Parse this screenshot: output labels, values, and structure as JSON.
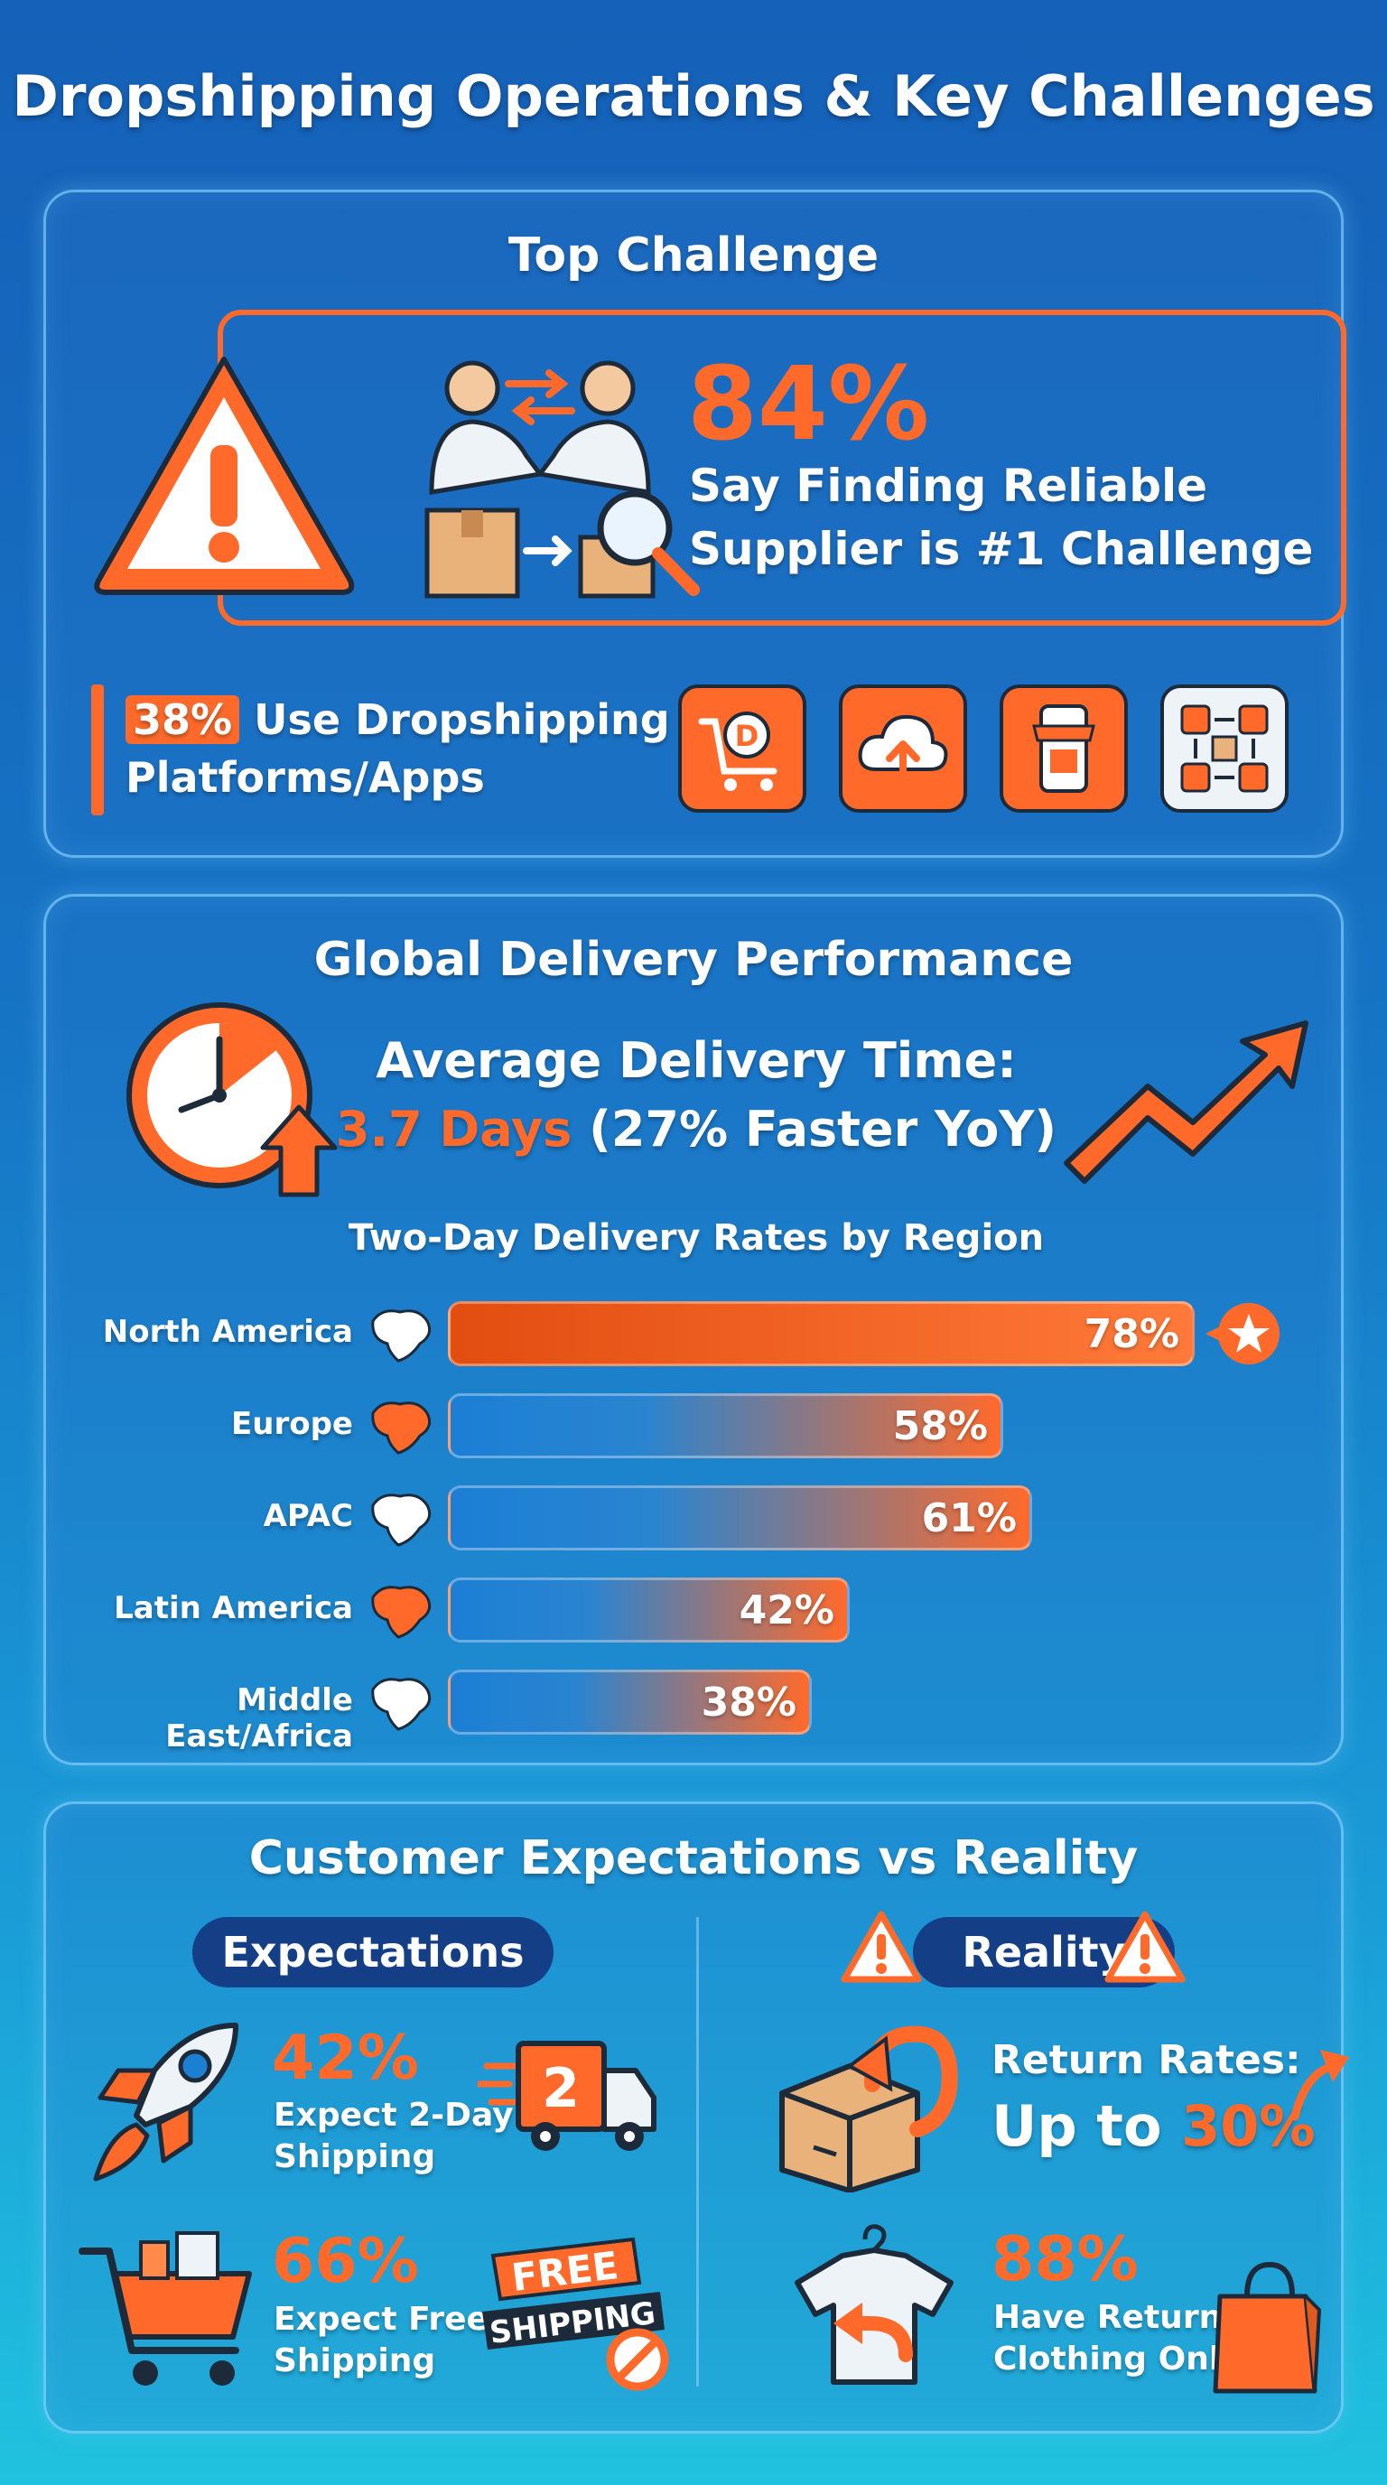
{
  "title": "Dropshipping Operations & Key Challenges",
  "colors": {
    "accent": "#ff6a2b",
    "background_top": "#1560b8",
    "background_bottom": "#20c2df"
  },
  "top_challenge": {
    "heading": "Top Challenge",
    "percent": "84%",
    "line1": "Say Finding Reliable",
    "line2": "Supplier is #1 Challenge",
    "platforms_percent": "38%",
    "platforms_line1": "Use Dropshipping",
    "platforms_line2": "Platforms/Apps",
    "icons": [
      "warning-icon",
      "handshake-supplier-icon",
      "dropshipping-cart-icon",
      "cloud-upload-icon",
      "mobile-store-icon",
      "supply-flow-icon"
    ],
    "cart_letter": "D"
  },
  "delivery": {
    "heading": "Global Delivery Performance",
    "avg_label": "Average Delivery Time:",
    "avg_value": "3.7 Days",
    "avg_note": "(27% Faster YoY)",
    "chart_title": "Two-Day Delivery Rates by Region"
  },
  "chart_data": {
    "type": "bar",
    "orientation": "horizontal",
    "title": "Two-Day Delivery Rates by Region",
    "categories": [
      "North America",
      "Europe",
      "APAC",
      "Latin America",
      "Middle East/Africa"
    ],
    "values": [
      78,
      58,
      61,
      42,
      38
    ],
    "value_labels": [
      "78%",
      "58%",
      "61%",
      "42%",
      "38%"
    ],
    "unit": "%",
    "xlim": [
      0,
      100
    ],
    "highlight": "North America"
  },
  "expectations": {
    "heading": "Customer Expectations vs Reality",
    "expect_label": "Expectations",
    "reality_label": "Reality",
    "e1_pct": "42%",
    "e1_line1": "Expect 2-Day",
    "e1_line2": "Shipping",
    "truck_number": "2",
    "e2_pct": "66%",
    "e2_line1": "Expect Free",
    "e2_line2": "Shipping",
    "free_word": "FREE",
    "shipping_word": "SHIPPING",
    "r1_line1": "Return Rates:",
    "r1_prefix": "Up to",
    "r1_pct": "30%",
    "r2_pct": "88%",
    "r2_line1": "Have Returned",
    "r2_line2": "Clothing Online"
  }
}
